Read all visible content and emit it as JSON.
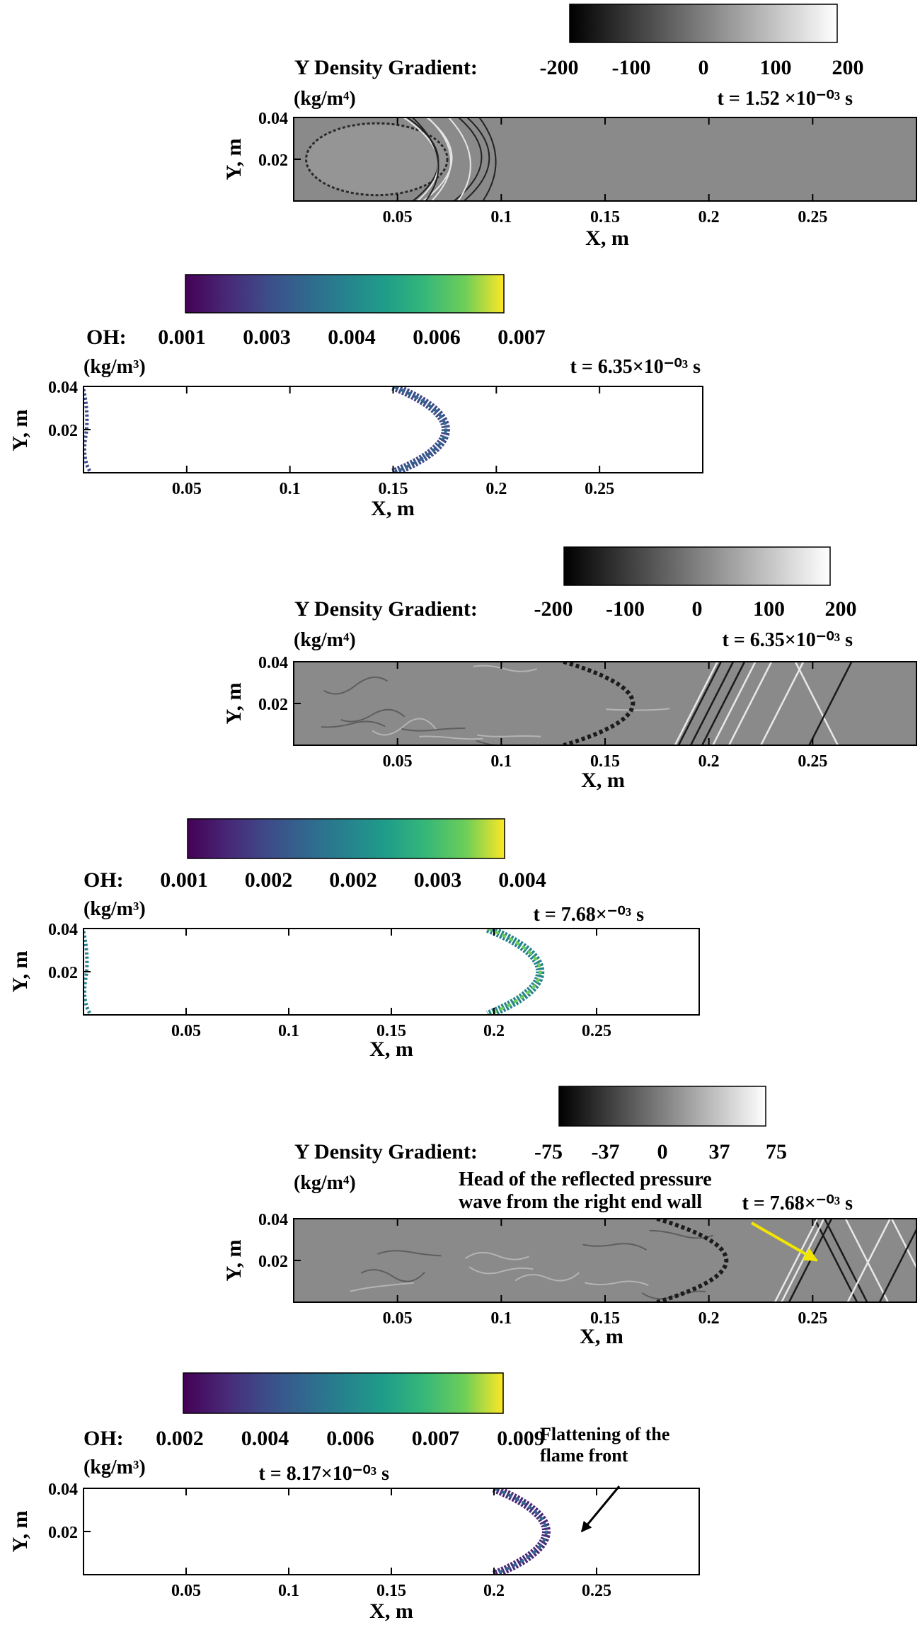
{
  "chart_data": [
    {
      "type": "heatmap",
      "variable": "Y Density Gradient",
      "label": "Y Density Gradient:",
      "unit": "(kg/m⁴)",
      "colormap": "grayscale",
      "colorbar_ticks": [
        "-200",
        "-100",
        "0",
        "100",
        "200"
      ],
      "time_label": "t = 1.52 ×10⁻⁰³ s",
      "xlabel": "X, m",
      "ylabel": "Y, m",
      "xlim": [
        0,
        0.3
      ],
      "ylim": [
        0,
        0.04
      ],
      "x_ticks": [
        "0.05",
        "0.1",
        "0.15",
        "0.2",
        "0.25"
      ],
      "y_ticks": [
        "0.04",
        "0.02"
      ],
      "annotations": []
    },
    {
      "type": "heatmap",
      "variable": "OH",
      "label": "OH:",
      "unit": "(kg/m³)",
      "colormap": "viridis",
      "colorbar_ticks": [
        "0.001",
        "0.003",
        "0.004",
        "0.006",
        "0.007"
      ],
      "time_label": "t = 6.35×10⁻⁰³ s",
      "xlabel": "X, m",
      "ylabel": "Y, m",
      "xlim": [
        0,
        0.3
      ],
      "ylim": [
        0,
        0.04
      ],
      "x_ticks": [
        "0.05",
        "0.1",
        "0.15",
        "0.2",
        "0.25"
      ],
      "y_ticks": [
        "0.04",
        "0.02"
      ],
      "flame_tip_x": 0.188,
      "annotations": []
    },
    {
      "type": "heatmap",
      "variable": "Y Density Gradient",
      "label": "Y Density Gradient:",
      "unit": "(kg/m⁴)",
      "colormap": "grayscale",
      "colorbar_ticks": [
        "-200",
        "-100",
        "0",
        "100",
        "200"
      ],
      "time_label": "t = 6.35×10⁻⁰³ s",
      "xlabel": "X, m",
      "ylabel": "Y, m",
      "xlim": [
        0,
        0.3
      ],
      "ylim": [
        0,
        0.04
      ],
      "x_ticks": [
        "0.05",
        "0.1",
        "0.15",
        "0.2",
        "0.25"
      ],
      "y_ticks": [
        "0.04",
        "0.02"
      ],
      "annotations": []
    },
    {
      "type": "heatmap",
      "variable": "OH",
      "label": "OH:",
      "unit": "(kg/m³)",
      "colormap": "viridis",
      "colorbar_ticks": [
        "0.001",
        "0.002",
        "0.002",
        "0.003",
        "0.004"
      ],
      "time_label": "t = 7.68×⁻⁰³ s",
      "xlabel": "X, m",
      "ylabel": "Y, m",
      "xlim": [
        0,
        0.3
      ],
      "ylim": [
        0,
        0.04
      ],
      "x_ticks": [
        "0.05",
        "0.1",
        "0.15",
        "0.2",
        "0.25"
      ],
      "y_ticks": [
        "0.04",
        "0.02"
      ],
      "flame_tip_x": 0.235,
      "annotations": []
    },
    {
      "type": "heatmap",
      "variable": "Y Density Gradient",
      "label": "Y Density Gradient:",
      "unit": "(kg/m⁴)",
      "colormap": "grayscale",
      "colorbar_ticks": [
        "-75",
        "-37",
        "0",
        "37",
        "75"
      ],
      "time_label": "t = 7.68×⁻⁰³ s",
      "xlabel": "X, m",
      "ylabel": "Y, m",
      "xlim": [
        0,
        0.3
      ],
      "ylim": [
        0,
        0.04
      ],
      "x_ticks": [
        "0.05",
        "0.1",
        "0.15",
        "0.2",
        "0.25"
      ],
      "y_ticks": [
        "0.04",
        "0.02"
      ],
      "annotations": [
        {
          "text_lines": [
            "Head of the reflected pressure",
            "wave from the right end wall"
          ],
          "arrow_color": "#f2e600",
          "x": 0.252,
          "y": 0.02
        }
      ]
    },
    {
      "type": "heatmap",
      "variable": "OH",
      "label": "OH:",
      "unit": "(kg/m³)",
      "colormap": "viridis",
      "colorbar_ticks": [
        "0.002",
        "0.004",
        "0.006",
        "0.007",
        "0.009"
      ],
      "time_label": "t = 8.17×10⁻⁰³ s",
      "xlabel": "X, m",
      "ylabel": "Y, m",
      "xlim": [
        0,
        0.3
      ],
      "ylim": [
        0,
        0.04
      ],
      "x_ticks": [
        "0.05",
        "0.1",
        "0.15",
        "0.2",
        "0.25"
      ],
      "y_ticks": [
        "0.04",
        "0.02"
      ],
      "flame_tip_x": 0.238,
      "annotations": [
        {
          "text_lines": [
            "Flattening of the",
            "flame front"
          ],
          "arrow_color": "#000000",
          "x": 0.24,
          "y": 0.02
        }
      ]
    }
  ]
}
